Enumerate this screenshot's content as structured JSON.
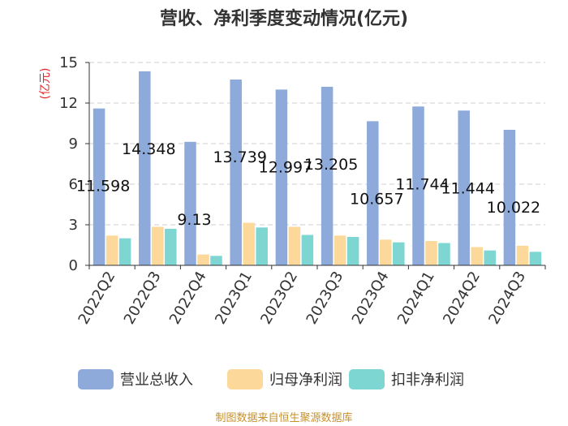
{
  "chart_data": {
    "type": "bar",
    "title": "营收、净利季度变动情况(亿元)",
    "ylabel": "(亿元)",
    "ylim": [
      0,
      15
    ],
    "yticks": [
      0,
      3,
      6,
      9,
      12,
      15
    ],
    "grid": true,
    "legend_position": "bottom",
    "categories": [
      "2022Q2",
      "2022Q3",
      "2022Q4",
      "2023Q1",
      "2023Q2",
      "2023Q3",
      "2023Q4",
      "2024Q1",
      "2024Q2",
      "2024Q3"
    ],
    "series": [
      {
        "name": "营业总收入",
        "color": "#8eaadb",
        "labeled": true,
        "values": [
          11.598,
          14.348,
          9.13,
          13.739,
          12.997,
          13.205,
          10.657,
          11.744,
          11.444,
          10.022
        ]
      },
      {
        "name": "归母净利润",
        "color": "#fcd89a",
        "values": [
          2.2,
          2.85,
          0.8,
          3.15,
          2.85,
          2.2,
          1.9,
          1.8,
          1.35,
          1.45
        ]
      },
      {
        "name": "扣非净利润",
        "color": "#7dd6d2",
        "values": [
          2.0,
          2.7,
          0.7,
          2.8,
          2.25,
          2.1,
          1.7,
          1.65,
          1.1,
          1.0
        ]
      }
    ]
  },
  "footer": {
    "source": "制图数据来自恒生聚源数据库"
  }
}
